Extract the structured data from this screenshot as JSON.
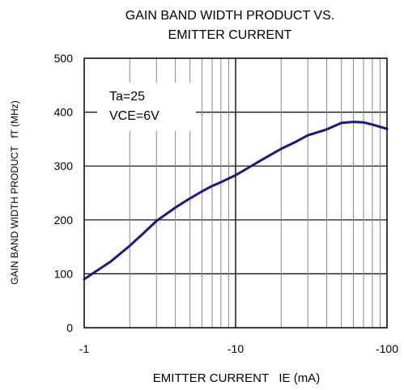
{
  "chart_data": {
    "type": "line",
    "title": "GAIN BAND WIDTH PRODUCT VS.",
    "subtitle": "EMITTER CURRENT",
    "xlabel": "EMITTER CURRENT   IE (mA)",
    "ylabel": "GAIN BAND WIDTH PRODUCT   fT (MHz)",
    "xscale": "log",
    "xlim": [
      -1,
      -100
    ],
    "ylim": [
      0,
      500
    ],
    "xtick_labels": [
      "-1",
      "-10",
      "-100"
    ],
    "ytick_labels": [
      "0",
      "100",
      "200",
      "300",
      "400",
      "500"
    ],
    "yticks": [
      0,
      100,
      200,
      300,
      400,
      500
    ],
    "grid": true,
    "annotations": [
      "Ta=25",
      "VCE=6V"
    ],
    "series": [
      {
        "color": "#1a1a80",
        "x": [
          -1,
          -1.2,
          -1.5,
          -2,
          -2.5,
          -3,
          -4,
          -5,
          -6,
          -7,
          -8,
          -10,
          -12,
          -15,
          -20,
          -25,
          -30,
          -40,
          -50,
          -60,
          -70,
          -80,
          -100
        ],
        "y": [
          90,
          105,
          123,
          152,
          177,
          198,
          223,
          240,
          253,
          263,
          270,
          283,
          296,
          312,
          332,
          345,
          357,
          368,
          380,
          382,
          381,
          377,
          369
        ]
      }
    ]
  }
}
